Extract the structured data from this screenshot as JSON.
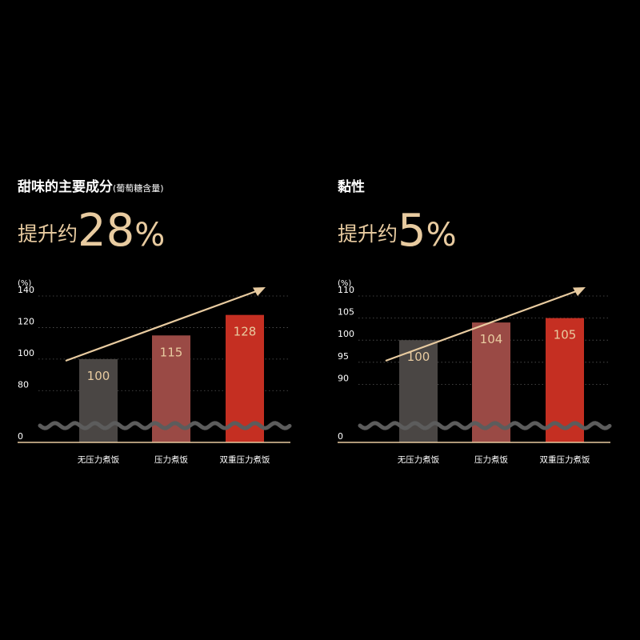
{
  "colors": {
    "accent": "#e8cba0",
    "bar_none": "#4a4644",
    "bar_pressure": "#9a4a45",
    "bar_dual": "#c52f22",
    "grid": "#555555",
    "break": "#5c5c5c"
  },
  "chart_data": [
    {
      "type": "bar",
      "title": "甜味的主要成分",
      "subtitle": "(葡萄糖含量)",
      "headline_prefix": "提升约",
      "headline_value": "28",
      "headline_unit": "%",
      "ylabel": "(%)",
      "yticks": [
        "140",
        "120",
        "100",
        "80",
        "0"
      ],
      "ylim": [
        70,
        140
      ],
      "axis_break": true,
      "categories": [
        "无压力煮饭",
        "压力煮饭",
        "双重压力煮饭"
      ],
      "values": [
        100,
        115,
        128
      ],
      "data_labels": [
        "100",
        "115",
        "128"
      ],
      "trend_arrow": true
    },
    {
      "type": "bar",
      "title": "黏性",
      "subtitle": "",
      "headline_prefix": "提升约",
      "headline_value": "5",
      "headline_unit": "%",
      "ylabel": "(%)",
      "yticks": [
        "110",
        "105",
        "100",
        "95",
        "90",
        "0"
      ],
      "ylim": [
        85,
        110
      ],
      "axis_break": true,
      "categories": [
        "无压力煮饭",
        "压力煮饭",
        "双重压力煮饭"
      ],
      "values": [
        100,
        104,
        105
      ],
      "data_labels": [
        "100",
        "104",
        "105"
      ],
      "trend_arrow": true
    }
  ]
}
